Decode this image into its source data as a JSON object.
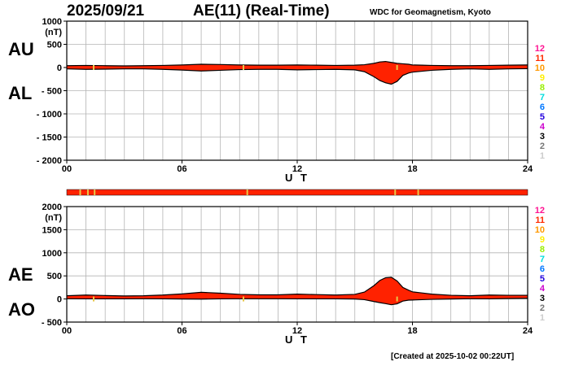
{
  "header": {
    "date": "2025/09/21",
    "title": "AE(11) (Real-Time)",
    "source": "WDC for Geomagnetism, Kyoto"
  },
  "footer": {
    "created": "[Created at 2025-10-02 00:22UT]"
  },
  "colors": {
    "fill": "#ff2200",
    "outline": "#000000",
    "grid": "#b4b4b4",
    "marker": "#e8c84a"
  },
  "station_count_legend": [
    {
      "label": "12",
      "color": "#ff1493"
    },
    {
      "label": "11",
      "color": "#ff2a00"
    },
    {
      "label": "10",
      "color": "#ff9900"
    },
    {
      "label": "9",
      "color": "#ffee00"
    },
    {
      "label": "8",
      "color": "#99ee00"
    },
    {
      "label": "7",
      "color": "#00dddd"
    },
    {
      "label": "6",
      "color": "#0077ff"
    },
    {
      "label": "5",
      "color": "#2200dd"
    },
    {
      "label": "4",
      "color": "#cc00cc"
    },
    {
      "label": "3",
      "color": "#000000"
    },
    {
      "label": "2",
      "color": "#777777"
    },
    {
      "label": "1",
      "color": "#cccccc"
    }
  ],
  "station_status_bar": {
    "color": "#ff2200",
    "marker_color": "#e8c84a",
    "marker_times_ut": [
      0.7,
      1.1,
      1.45,
      9.4,
      17.1,
      18.3
    ]
  },
  "chart_data": [
    {
      "type": "area",
      "panel": "AU/AL",
      "labels": [
        "AU",
        "AL"
      ],
      "ylabel": "(nT)",
      "xlabel": "U T",
      "ylim": [
        -2000,
        1000
      ],
      "yticks": [
        1000,
        500,
        0,
        -500,
        -1000,
        -1500,
        -2000
      ],
      "ytick_labels": [
        "1000",
        "500",
        "0",
        "- 500",
        "- 1000",
        "- 1500",
        "- 2000"
      ],
      "xlim": [
        0,
        24
      ],
      "xticks": [
        0,
        6,
        12,
        18,
        24
      ],
      "xtick_labels": [
        "00",
        "06",
        "12",
        "18",
        "24"
      ],
      "grid": true,
      "series": [
        {
          "name": "AU",
          "x": [
            0,
            1,
            2,
            3,
            4,
            5,
            6,
            7,
            8,
            9,
            10,
            11,
            12,
            13,
            14,
            15,
            15.5,
            16,
            16.3,
            16.6,
            16.9,
            17.2,
            17.5,
            17.8,
            18,
            18.5,
            19,
            20,
            21,
            22,
            23,
            24
          ],
          "values": [
            40,
            45,
            40,
            35,
            40,
            45,
            55,
            70,
            65,
            55,
            50,
            50,
            55,
            50,
            45,
            50,
            60,
            90,
            120,
            130,
            110,
            90,
            80,
            70,
            55,
            50,
            45,
            40,
            40,
            45,
            50,
            55
          ]
        },
        {
          "name": "AL",
          "x": [
            0,
            1,
            2,
            3,
            4,
            5,
            6,
            7,
            8,
            9,
            10,
            11,
            12,
            13,
            14,
            15,
            15.5,
            16,
            16.3,
            16.6,
            16.9,
            17.2,
            17.5,
            17.8,
            18,
            18.5,
            19,
            20,
            21,
            22,
            23,
            24
          ],
          "values": [
            -30,
            -40,
            -35,
            -30,
            -30,
            -40,
            -55,
            -75,
            -60,
            -45,
            -40,
            -40,
            -50,
            -45,
            -40,
            -50,
            -90,
            -200,
            -280,
            -330,
            -360,
            -300,
            -170,
            -120,
            -100,
            -80,
            -60,
            -40,
            -30,
            -40,
            -30,
            -25
          ]
        }
      ]
    },
    {
      "type": "area",
      "panel": "AE/AO",
      "labels": [
        "AE",
        "AO"
      ],
      "ylabel": "(nT)",
      "xlabel": "U T",
      "ylim": [
        -500,
        2000
      ],
      "yticks": [
        2000,
        1500,
        1000,
        500,
        0,
        -500
      ],
      "ytick_labels": [
        "2000",
        "1500",
        "1000",
        "500",
        "0",
        "- 500"
      ],
      "xlim": [
        0,
        24
      ],
      "xticks": [
        0,
        6,
        12,
        18,
        24
      ],
      "xtick_labels": [
        "00",
        "06",
        "12",
        "18",
        "24"
      ],
      "grid": true,
      "series": [
        {
          "name": "AE",
          "x": [
            0,
            1,
            2,
            3,
            4,
            5,
            6,
            7,
            8,
            9,
            10,
            11,
            12,
            13,
            14,
            15,
            15.5,
            16,
            16.3,
            16.6,
            16.9,
            17.2,
            17.5,
            17.8,
            18,
            18.5,
            19,
            20,
            21,
            22,
            23,
            24
          ],
          "values": [
            70,
            85,
            75,
            65,
            70,
            85,
            110,
            145,
            125,
            100,
            90,
            90,
            105,
            95,
            85,
            100,
            150,
            290,
            400,
            460,
            470,
            390,
            250,
            190,
            155,
            130,
            105,
            80,
            70,
            85,
            80,
            80
          ]
        },
        {
          "name": "AO",
          "x": [
            0,
            1,
            2,
            3,
            4,
            5,
            6,
            7,
            8,
            9,
            10,
            11,
            12,
            13,
            14,
            15,
            15.5,
            16,
            16.3,
            16.6,
            16.9,
            17.2,
            17.5,
            17.8,
            18,
            18.5,
            19,
            20,
            21,
            22,
            23,
            24
          ],
          "values": [
            5,
            3,
            3,
            3,
            5,
            3,
            0,
            -3,
            3,
            5,
            5,
            5,
            3,
            3,
            3,
            0,
            -15,
            -55,
            -80,
            -100,
            -125,
            -105,
            -45,
            -25,
            -22,
            -15,
            -8,
            0,
            5,
            3,
            10,
            15
          ]
        }
      ]
    }
  ]
}
